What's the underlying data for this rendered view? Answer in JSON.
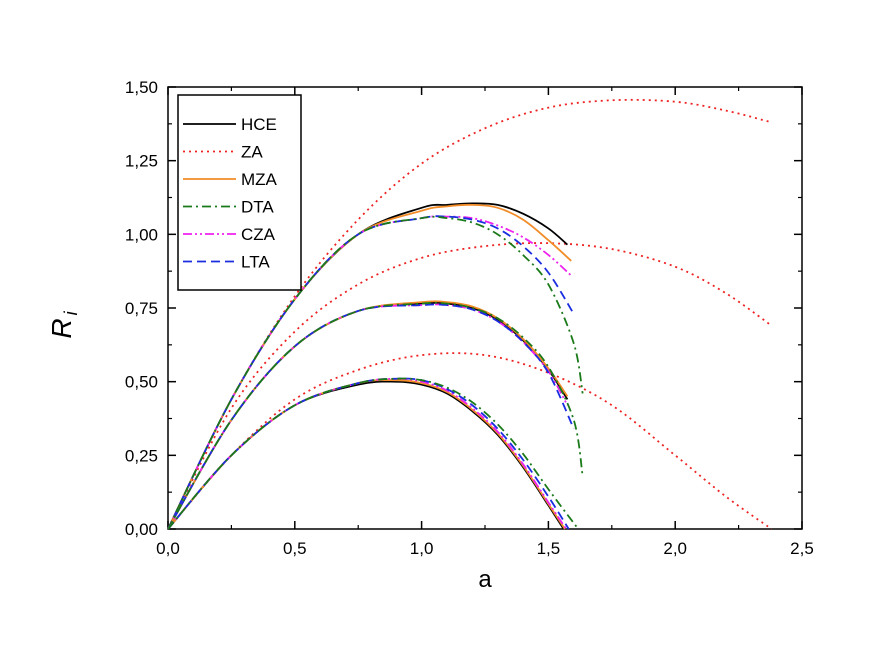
{
  "chart_data": {
    "type": "line",
    "title": "",
    "xlabel": "a",
    "ylabel": "R",
    "ylabel_subscript": "i",
    "xlim": [
      0.0,
      2.5
    ],
    "ylim": [
      0.0,
      1.5
    ],
    "x_ticks": [
      0.0,
      0.5,
      1.0,
      1.5,
      2.0,
      2.5
    ],
    "x_tick_labels": [
      "0,0",
      "0,5",
      "1,0",
      "1,5",
      "2,0",
      "2,5"
    ],
    "y_ticks": [
      0.0,
      0.25,
      0.5,
      0.75,
      1.0,
      1.25,
      1.5
    ],
    "y_tick_labels": [
      "0,00",
      "0,25",
      "0,50",
      "0,75",
      "1,00",
      "1,25",
      "1,50"
    ],
    "grid": false,
    "legend_position": "top-left",
    "legend": [
      {
        "name": "HCE",
        "color": "#000000",
        "dash": "solid"
      },
      {
        "name": "ZA",
        "color": "#ee2222",
        "dash": "dot"
      },
      {
        "name": "MZA",
        "color": "#f28c28",
        "dash": "solid"
      },
      {
        "name": "DTA",
        "color": "#1a7a1a",
        "dash": "dashdot"
      },
      {
        "name": "CZA",
        "color": "#ee22ee",
        "dash": "dashdotdot"
      },
      {
        "name": "LTA",
        "color": "#1a2ee0",
        "dash": "dash"
      }
    ],
    "series": [
      {
        "name": "ZA",
        "group": "upper",
        "x": [
          0,
          0.25,
          0.5,
          0.75,
          1.0,
          1.25,
          1.5,
          1.75,
          2.0,
          2.2,
          2.38
        ],
        "y": [
          0,
          0.44,
          0.79,
          1.05,
          1.24,
          1.36,
          1.43,
          1.455,
          1.45,
          1.42,
          1.38
        ]
      },
      {
        "name": "ZA",
        "group": "middle",
        "x": [
          0,
          0.25,
          0.5,
          0.75,
          1.0,
          1.25,
          1.5,
          1.75,
          2.0,
          2.2,
          2.38
        ],
        "y": [
          0,
          0.41,
          0.67,
          0.83,
          0.92,
          0.96,
          0.97,
          0.95,
          0.89,
          0.8,
          0.69
        ]
      },
      {
        "name": "ZA",
        "group": "lower",
        "x": [
          0,
          0.25,
          0.5,
          0.75,
          1.0,
          1.25,
          1.5,
          1.75,
          2.0,
          2.2,
          2.38
        ],
        "y": [
          0,
          0.25,
          0.44,
          0.54,
          0.59,
          0.59,
          0.53,
          0.42,
          0.25,
          0.11,
          0.0
        ]
      },
      {
        "name": "HCE",
        "group": "upper",
        "x": [
          0,
          0.25,
          0.5,
          0.75,
          1.0,
          1.1,
          1.2,
          1.3,
          1.4,
          1.5,
          1.575
        ],
        "y": [
          0,
          0.44,
          0.78,
          1.0,
          1.09,
          1.1,
          1.105,
          1.1,
          1.07,
          1.02,
          0.965
        ]
      },
      {
        "name": "MZA",
        "group": "upper",
        "x": [
          0,
          0.25,
          0.5,
          0.75,
          1.0,
          1.1,
          1.2,
          1.3,
          1.4,
          1.5,
          1.59
        ],
        "y": [
          0,
          0.44,
          0.78,
          1.0,
          1.08,
          1.095,
          1.1,
          1.09,
          1.05,
          0.98,
          0.91
        ]
      },
      {
        "name": "CZA",
        "group": "upper",
        "x": [
          0,
          0.25,
          0.5,
          0.75,
          1.0,
          1.1,
          1.2,
          1.3,
          1.4,
          1.5,
          1.59
        ],
        "y": [
          0,
          0.44,
          0.78,
          1.0,
          1.055,
          1.06,
          1.055,
          1.03,
          0.99,
          0.93,
          0.86
        ]
      },
      {
        "name": "LTA",
        "group": "upper",
        "x": [
          0,
          0.25,
          0.5,
          0.75,
          1.0,
          1.1,
          1.2,
          1.3,
          1.4,
          1.5,
          1.6
        ],
        "y": [
          0,
          0.44,
          0.78,
          1.0,
          1.055,
          1.06,
          1.05,
          1.02,
          0.96,
          0.87,
          0.73
        ]
      },
      {
        "name": "DTA",
        "group": "upper",
        "x": [
          0,
          0.25,
          0.5,
          0.75,
          1.0,
          1.1,
          1.2,
          1.3,
          1.4,
          1.5,
          1.6,
          1.635
        ],
        "y": [
          0,
          0.44,
          0.78,
          1.0,
          1.055,
          1.055,
          1.04,
          1.0,
          0.93,
          0.83,
          0.63,
          0.46
        ]
      },
      {
        "name": "HCE",
        "group": "middle",
        "x": [
          0,
          0.25,
          0.5,
          0.75,
          1.0,
          1.1,
          1.2,
          1.3,
          1.4,
          1.5,
          1.575
        ],
        "y": [
          0,
          0.37,
          0.62,
          0.74,
          0.765,
          0.765,
          0.75,
          0.71,
          0.64,
          0.54,
          0.44
        ]
      },
      {
        "name": "MZA",
        "group": "middle",
        "x": [
          0,
          0.25,
          0.5,
          0.75,
          1.0,
          1.1,
          1.2,
          1.3,
          1.4,
          1.5,
          1.575
        ],
        "y": [
          0,
          0.37,
          0.62,
          0.74,
          0.77,
          0.77,
          0.755,
          0.715,
          0.645,
          0.545,
          0.45
        ]
      },
      {
        "name": "CZA",
        "group": "middle",
        "x": [
          0,
          0.25,
          0.5,
          0.75,
          1.0,
          1.1,
          1.2,
          1.3,
          1.4,
          1.5,
          1.575
        ],
        "y": [
          0,
          0.37,
          0.62,
          0.74,
          0.76,
          0.76,
          0.745,
          0.705,
          0.635,
          0.535,
          0.42
        ]
      },
      {
        "name": "LTA",
        "group": "middle",
        "x": [
          0,
          0.25,
          0.5,
          0.75,
          1.0,
          1.1,
          1.2,
          1.3,
          1.4,
          1.5,
          1.6
        ],
        "y": [
          0,
          0.37,
          0.62,
          0.74,
          0.76,
          0.76,
          0.745,
          0.705,
          0.635,
          0.53,
          0.34
        ]
      },
      {
        "name": "DTA",
        "group": "middle",
        "x": [
          0,
          0.25,
          0.5,
          0.75,
          1.0,
          1.1,
          1.2,
          1.3,
          1.4,
          1.5,
          1.6,
          1.635
        ],
        "y": [
          0,
          0.37,
          0.62,
          0.74,
          0.765,
          0.765,
          0.75,
          0.715,
          0.65,
          0.55,
          0.37,
          0.18
        ]
      },
      {
        "name": "HCE",
        "group": "lower",
        "x": [
          0,
          0.25,
          0.5,
          0.75,
          0.9,
          1.0,
          1.1,
          1.2,
          1.3,
          1.4,
          1.5,
          1.56
        ],
        "y": [
          0,
          0.25,
          0.42,
          0.49,
          0.5,
          0.49,
          0.46,
          0.4,
          0.32,
          0.21,
          0.08,
          0.0
        ]
      },
      {
        "name": "MZA",
        "group": "lower",
        "x": [
          0,
          0.25,
          0.5,
          0.75,
          0.9,
          1.0,
          1.1,
          1.2,
          1.3,
          1.4,
          1.5,
          1.565
        ],
        "y": [
          0,
          0.25,
          0.42,
          0.495,
          0.505,
          0.495,
          0.465,
          0.405,
          0.325,
          0.215,
          0.085,
          0.0
        ]
      },
      {
        "name": "CZA",
        "group": "lower",
        "x": [
          0,
          0.25,
          0.5,
          0.75,
          0.9,
          1.0,
          1.1,
          1.2,
          1.3,
          1.4,
          1.5,
          1.57
        ],
        "y": [
          0,
          0.25,
          0.42,
          0.495,
          0.51,
          0.5,
          0.47,
          0.41,
          0.33,
          0.22,
          0.09,
          0.0
        ]
      },
      {
        "name": "LTA",
        "group": "lower",
        "x": [
          0,
          0.25,
          0.5,
          0.75,
          0.9,
          1.0,
          1.1,
          1.2,
          1.3,
          1.4,
          1.5,
          1.58
        ],
        "y": [
          0,
          0.25,
          0.42,
          0.495,
          0.51,
          0.505,
          0.475,
          0.42,
          0.34,
          0.235,
          0.11,
          0.0
        ]
      },
      {
        "name": "DTA",
        "group": "lower",
        "x": [
          0,
          0.25,
          0.5,
          0.75,
          0.9,
          1.0,
          1.1,
          1.2,
          1.3,
          1.4,
          1.5,
          1.6,
          1.62
        ],
        "y": [
          0,
          0.25,
          0.42,
          0.495,
          0.51,
          0.505,
          0.48,
          0.43,
          0.355,
          0.255,
          0.135,
          0.02,
          0.0
        ]
      }
    ]
  }
}
